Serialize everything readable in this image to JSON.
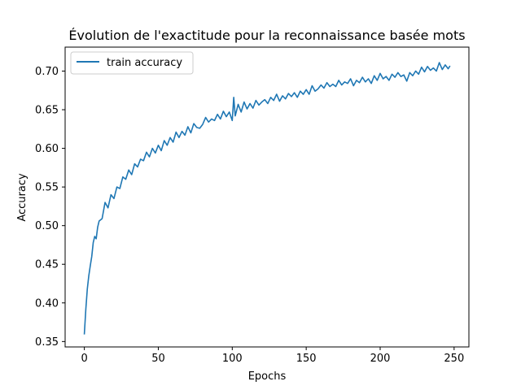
{
  "chart_data": {
    "type": "line",
    "title": "Évolution de l'exactitude pour la reconnaissance basée mots",
    "xlabel": "Epochs",
    "ylabel": "Accuracy",
    "xlim": [
      -13,
      260
    ],
    "ylim": [
      0.343,
      0.731
    ],
    "xticks": [
      0,
      50,
      100,
      150,
      200,
      250
    ],
    "xtick_labels": [
      "0",
      "50",
      "100",
      "150",
      "200",
      "250"
    ],
    "yticks": [
      0.35,
      0.4,
      0.45,
      0.5,
      0.55,
      0.6,
      0.65,
      0.7
    ],
    "ytick_labels": [
      "0.35",
      "0.40",
      "0.45",
      "0.50",
      "0.55",
      "0.60",
      "0.65",
      "0.70"
    ],
    "grid": false,
    "legend_position": "upper-left",
    "series": [
      {
        "name": "train accuracy",
        "color": "#1f77b4",
        "x": [
          0,
          1,
          2,
          3,
          4,
          5,
          6,
          7,
          8,
          9,
          10,
          12,
          14,
          16,
          18,
          20,
          22,
          24,
          26,
          28,
          30,
          32,
          34,
          36,
          38,
          40,
          42,
          44,
          46,
          48,
          50,
          52,
          54,
          56,
          58,
          60,
          62,
          64,
          66,
          68,
          70,
          72,
          74,
          76,
          78,
          80,
          82,
          84,
          86,
          88,
          90,
          92,
          94,
          96,
          98,
          100,
          101,
          102,
          104,
          106,
          108,
          110,
          112,
          114,
          116,
          118,
          120,
          122,
          124,
          126,
          128,
          130,
          132,
          134,
          136,
          138,
          140,
          142,
          144,
          146,
          148,
          150,
          152,
          154,
          156,
          158,
          160,
          162,
          164,
          166,
          168,
          170,
          172,
          174,
          176,
          178,
          180,
          182,
          184,
          186,
          188,
          190,
          192,
          194,
          196,
          198,
          200,
          202,
          204,
          206,
          208,
          210,
          212,
          214,
          216,
          218,
          220,
          222,
          224,
          226,
          228,
          230,
          232,
          234,
          236,
          238,
          240,
          242,
          244,
          246,
          247
        ],
        "y": [
          0.36,
          0.392,
          0.418,
          0.435,
          0.448,
          0.46,
          0.478,
          0.486,
          0.483,
          0.498,
          0.506,
          0.509,
          0.53,
          0.523,
          0.54,
          0.535,
          0.55,
          0.548,
          0.563,
          0.56,
          0.572,
          0.566,
          0.58,
          0.576,
          0.586,
          0.584,
          0.595,
          0.589,
          0.6,
          0.594,
          0.604,
          0.597,
          0.61,
          0.604,
          0.614,
          0.608,
          0.621,
          0.614,
          0.622,
          0.617,
          0.628,
          0.62,
          0.632,
          0.627,
          0.626,
          0.631,
          0.64,
          0.634,
          0.638,
          0.636,
          0.644,
          0.638,
          0.648,
          0.641,
          0.647,
          0.636,
          0.666,
          0.642,
          0.657,
          0.647,
          0.66,
          0.651,
          0.658,
          0.652,
          0.662,
          0.656,
          0.66,
          0.663,
          0.658,
          0.666,
          0.662,
          0.67,
          0.661,
          0.668,
          0.664,
          0.671,
          0.667,
          0.672,
          0.666,
          0.674,
          0.67,
          0.676,
          0.67,
          0.681,
          0.674,
          0.677,
          0.682,
          0.678,
          0.685,
          0.68,
          0.683,
          0.68,
          0.688,
          0.682,
          0.686,
          0.684,
          0.69,
          0.681,
          0.688,
          0.685,
          0.692,
          0.686,
          0.69,
          0.684,
          0.694,
          0.688,
          0.697,
          0.69,
          0.693,
          0.688,
          0.696,
          0.692,
          0.698,
          0.693,
          0.695,
          0.687,
          0.698,
          0.694,
          0.7,
          0.696,
          0.705,
          0.699,
          0.706,
          0.701,
          0.704,
          0.7,
          0.711,
          0.702,
          0.708,
          0.703,
          0.706
        ]
      }
    ]
  }
}
